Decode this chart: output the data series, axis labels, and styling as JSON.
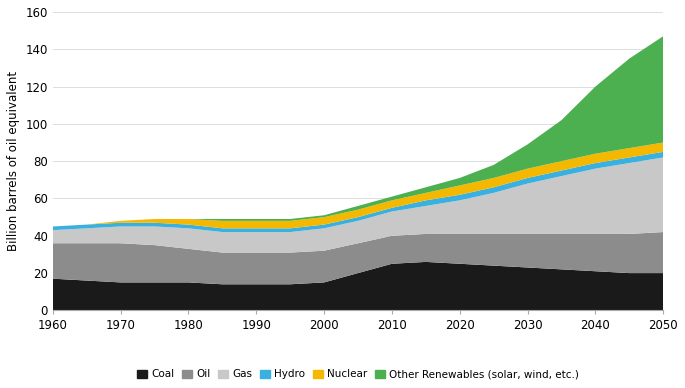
{
  "years": [
    1960,
    1965,
    1970,
    1975,
    1980,
    1985,
    1990,
    1995,
    2000,
    2005,
    2010,
    2015,
    2020,
    2025,
    2030,
    2035,
    2040,
    2045,
    2050
  ],
  "coal": [
    17,
    16,
    15,
    15,
    15,
    14,
    14,
    14,
    15,
    20,
    25,
    26,
    25,
    24,
    23,
    22,
    21,
    20,
    20
  ],
  "oil": [
    19,
    20,
    21,
    20,
    18,
    17,
    17,
    17,
    17,
    16,
    15,
    15,
    16,
    17,
    18,
    19,
    20,
    21,
    22
  ],
  "gas": [
    7,
    8,
    9,
    10,
    11,
    11,
    11,
    11,
    12,
    12,
    13,
    15,
    18,
    22,
    27,
    31,
    35,
    38,
    40
  ],
  "hydro": [
    2,
    2,
    2,
    2,
    2,
    2,
    2,
    2,
    2,
    2,
    2,
    3,
    3,
    3,
    3,
    3,
    3,
    3,
    3
  ],
  "nuclear": [
    0,
    0,
    1,
    2,
    3,
    4,
    4,
    4,
    4,
    4,
    4,
    4,
    5,
    5,
    5,
    5,
    5,
    5,
    5
  ],
  "renewables": [
    0,
    0,
    0,
    0,
    0,
    1,
    1,
    1,
    1,
    2,
    2,
    3,
    4,
    7,
    13,
    22,
    36,
    48,
    57
  ],
  "colors": {
    "coal": "#1a1a1a",
    "oil": "#8c8c8c",
    "gas": "#c8c8c8",
    "hydro": "#3ab0e0",
    "nuclear": "#f5b800",
    "renewables": "#4caf50"
  },
  "labels": {
    "coal": "Coal",
    "oil": "Oil",
    "gas": "Gas",
    "hydro": "Hydro",
    "nuclear": "Nuclear",
    "renewables": "Other Renewables (solar, wind, etc.)"
  },
  "ylabel": "Billion barrels of oil equivalent",
  "ylim": [
    0,
    160
  ],
  "yticks": [
    0,
    20,
    40,
    60,
    80,
    100,
    120,
    140,
    160
  ],
  "xlim": [
    1960,
    2050
  ],
  "xticks": [
    1960,
    1970,
    1980,
    1990,
    2000,
    2010,
    2020,
    2030,
    2040,
    2050
  ]
}
